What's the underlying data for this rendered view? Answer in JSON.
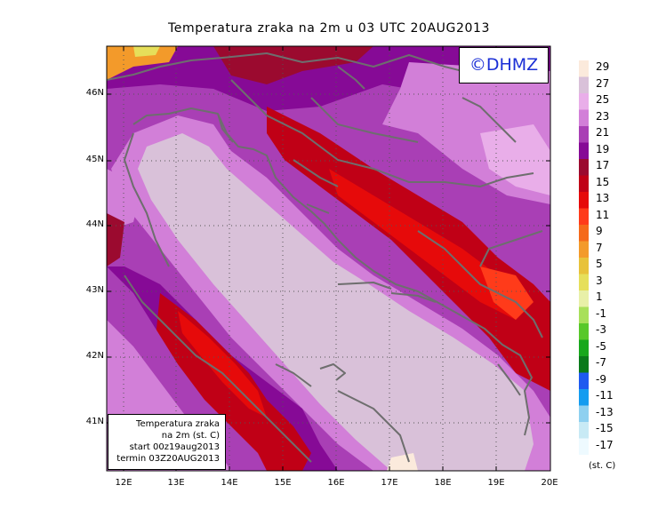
{
  "title": "Temperatura zraka na 2m u 03 UTC 20AUG2013",
  "copyright": "©DHMZ",
  "info_box": {
    "line1": "Temperatura zraka",
    "line2": "na 2m (st. C)",
    "line3": "start 00z19aug2013",
    "line4": "termin 03Z20AUG2013"
  },
  "latitude_labels": [
    "46N",
    "45N",
    "44N",
    "43N",
    "42N",
    "41N"
  ],
  "longitude_labels": [
    "12E",
    "13E",
    "14E",
    "15E",
    "16E",
    "17E",
    "18E",
    "19E",
    "20E"
  ],
  "colorbar": {
    "labels": [
      "29",
      "27",
      "25",
      "23",
      "21",
      "19",
      "17",
      "15",
      "13",
      "11",
      "9",
      "7",
      "5",
      "3",
      "1",
      "-1",
      "-3",
      "-5",
      "-7",
      "-9",
      "-11",
      "-13",
      "-15",
      "-17"
    ],
    "colors": [
      "#fbeadc",
      "#d9c1d9",
      "#e9aee9",
      "#d27fd8",
      "#a93fb5",
      "#860a96",
      "#9b0a2f",
      "#c00016",
      "#e60a0a",
      "#ff3b1a",
      "#f56a1a",
      "#f39a2a",
      "#e8c23a",
      "#e6df5a",
      "#e8f0a8",
      "#a8e05a",
      "#58c82a",
      "#18a81c",
      "#0a7a1a",
      "#1e5af0",
      "#149cf0",
      "#8ed0f0",
      "#c8eaf5",
      "#eefaff"
    ],
    "units": "(st. C)"
  }
}
